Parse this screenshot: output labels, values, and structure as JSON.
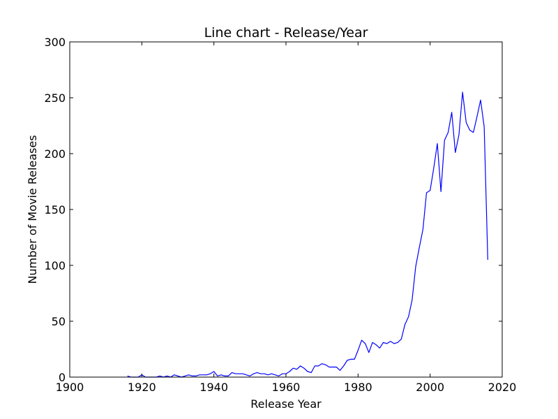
{
  "chart_data": {
    "type": "line",
    "title": "Line chart - Release/Year",
    "xlabel": "Release Year",
    "ylabel": "Number of Movie Releases",
    "xlim": [
      1900,
      2020
    ],
    "ylim": [
      0,
      300
    ],
    "xticks": [
      "1900",
      "1920",
      "1940",
      "1960",
      "1980",
      "2000",
      "2020"
    ],
    "yticks": [
      "0",
      "50",
      "100",
      "150",
      "200",
      "250",
      "300"
    ],
    "grid": false,
    "legend": "none",
    "series": [
      {
        "color": "#0000ff",
        "x": [
          1916,
          1917,
          1918,
          1919,
          1920,
          1921,
          1922,
          1923,
          1924,
          1925,
          1926,
          1927,
          1928,
          1929,
          1930,
          1931,
          1932,
          1933,
          1934,
          1935,
          1936,
          1937,
          1938,
          1939,
          1940,
          1941,
          1942,
          1943,
          1944,
          1945,
          1946,
          1947,
          1948,
          1949,
          1950,
          1951,
          1952,
          1953,
          1954,
          1955,
          1956,
          1957,
          1958,
          1959,
          1960,
          1961,
          1962,
          1963,
          1964,
          1965,
          1966,
          1967,
          1968,
          1969,
          1970,
          1971,
          1972,
          1973,
          1974,
          1975,
          1976,
          1977,
          1978,
          1979,
          1980,
          1981,
          1982,
          1983,
          1984,
          1985,
          1986,
          1987,
          1988,
          1989,
          1990,
          1991,
          1992,
          1993,
          1994,
          1995,
          1996,
          1997,
          1998,
          1999,
          2000,
          2001,
          2002,
          2003,
          2004,
          2005,
          2006,
          2007,
          2008,
          2009,
          2010,
          2011,
          2012,
          2013,
          2014,
          2015,
          2016
        ],
        "y": [
          1,
          0,
          0,
          0,
          2,
          0,
          0,
          0,
          0,
          1,
          0,
          1,
          0,
          2,
          1,
          0,
          1,
          2,
          1,
          1,
          2,
          2,
          2,
          3,
          5,
          1,
          2,
          1,
          1,
          4,
          3,
          3,
          3,
          2,
          1,
          3,
          4,
          3,
          3,
          2,
          3,
          2,
          1,
          3,
          3,
          5,
          8,
          7,
          10,
          8,
          5,
          4,
          10,
          10,
          12,
          11,
          9,
          9,
          9,
          6,
          10,
          15,
          16,
          16,
          24,
          33,
          30,
          22,
          31,
          29,
          26,
          31,
          30,
          32,
          30,
          31,
          34,
          47,
          54,
          69,
          99,
          116,
          132,
          165,
          167,
          187,
          209,
          166,
          212,
          219,
          237,
          201,
          217,
          255,
          228,
          221,
          219,
          233,
          248,
          224,
          105
        ]
      }
    ]
  }
}
